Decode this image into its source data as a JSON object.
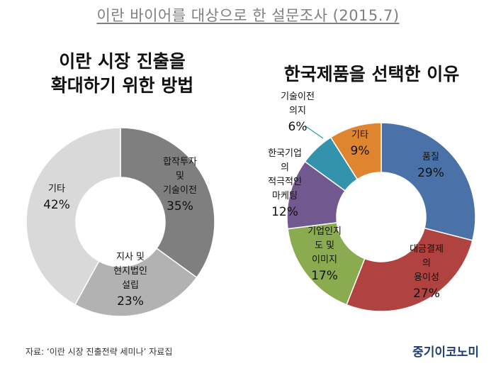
{
  "header": {
    "title": "이란 바이어를 대상으로 한 설문조사 (2015.7)"
  },
  "footer": {
    "source": "자료: ‘이란 시장 진출전략 세미나’ 자료집",
    "logo": "중기이코노미"
  },
  "chart_data": [
    {
      "type": "pie",
      "title": "이란 시장 진출을 확대하기 위한 방법",
      "title_lines": [
        "이란 시장 진출을",
        "확대하기 위한 방법"
      ],
      "slices": [
        {
          "label": "합작투자 및 기술이전",
          "label_lines": [
            "합작투자",
            "및",
            "기술이전"
          ],
          "value": 35,
          "value_label": "35%",
          "color": "#7f7f7f",
          "text_color": "#111111"
        },
        {
          "label": "지사 및 현지법인 설립",
          "label_lines": [
            "지사 및",
            "현지법인",
            "설립"
          ],
          "value": 23,
          "value_label": "23%",
          "color": "#b2b2b2",
          "text_color": "#111111"
        },
        {
          "label": "기타",
          "label_lines": [
            "기타"
          ],
          "value": 42,
          "value_label": "42%",
          "color": "#d9d9d9",
          "text_color": "#111111"
        }
      ]
    },
    {
      "type": "pie",
      "title": "한국제품을 선택한 이유",
      "title_lines": [
        "한국제품을 선택한 이유"
      ],
      "slices": [
        {
          "label": "품질",
          "label_lines": [
            "품질"
          ],
          "value": 29,
          "value_label": "29%",
          "color": "#4a72a8",
          "text_color": "#111111"
        },
        {
          "label": "대금결제의 용이성",
          "label_lines": [
            "대금결제",
            "의",
            "용이성"
          ],
          "value": 27,
          "value_label": "27%",
          "color": "#b0433f",
          "text_color": "#111111"
        },
        {
          "label": "기업인지도 및 이미지",
          "label_lines": [
            "기업인지",
            "도 및",
            "이미지"
          ],
          "value": 17,
          "value_label": "17%",
          "color": "#8aab4f",
          "text_color": "#111111"
        },
        {
          "label": "한국기업의 적극적인 마케팅",
          "label_lines": [
            "한국기업",
            "의",
            "적극적인",
            "마케팅"
          ],
          "value": 12,
          "value_label": "12%",
          "color": "#71588f",
          "text_color": "#111111"
        },
        {
          "label": "기술이전 의지",
          "label_lines": [
            "기술이전",
            "의지"
          ],
          "value": 6,
          "value_label": "6%",
          "color": "#3393ac",
          "text_color": "#111111"
        },
        {
          "label": "기타",
          "label_lines": [
            "기타"
          ],
          "value": 9,
          "value_label": "9%",
          "color": "#e0852f",
          "text_color": "#111111"
        }
      ]
    }
  ]
}
